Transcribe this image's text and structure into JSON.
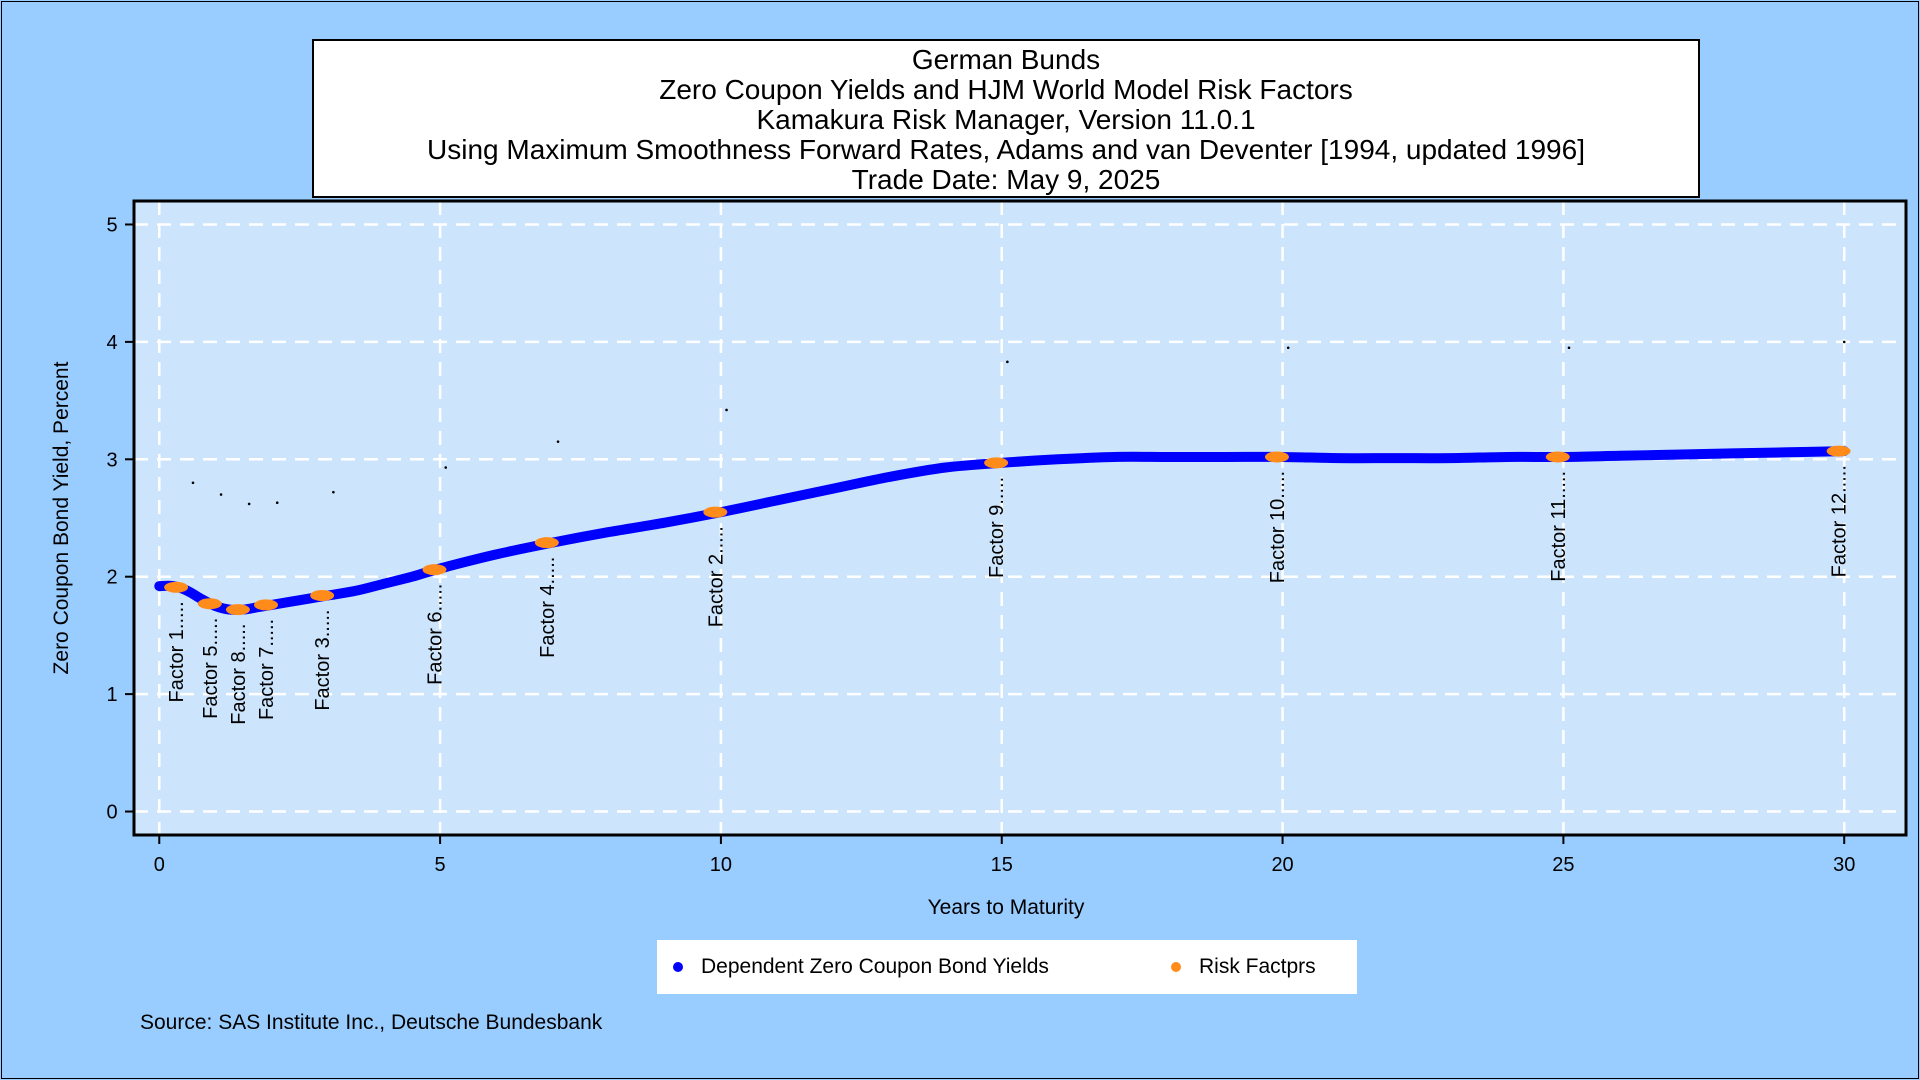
{
  "title_lines": [
    "German Bunds",
    "Zero Coupon Yields and HJM World Model Risk Factors",
    "Kamakura Risk Manager, Version 11.0.1",
    "Using Maximum Smoothness Forward Rates, Adams and van Deventer [1994, updated 1996]",
    "Trade Date: May 9, 2025"
  ],
  "source": "Source: SAS Institute Inc., Deutsche Bundesbank",
  "legend": {
    "yields_label": "Dependent Zero Coupon Bond Yields",
    "factors_label": "Risk Factprs"
  },
  "colors": {
    "background": "#99ccff",
    "plot_area": "#cce5fc",
    "yield_curve": "#0000ff",
    "risk_factor": "#ff8c1a",
    "grid": "#ffffff"
  },
  "chart_data": {
    "type": "line",
    "xlabel": "Years to Maturity",
    "ylabel": "Zero Coupon Bond Yield, Percent",
    "xlim": [
      -0.45,
      31.1
    ],
    "ylim": [
      -0.2,
      5.2
    ],
    "xticks": [
      0,
      5,
      10,
      15,
      20,
      25,
      30
    ],
    "yticks": [
      0,
      1,
      2,
      3,
      4,
      5
    ],
    "grid": true,
    "legend_position": "bottom",
    "series": [
      {
        "name": "Dependent Zero Coupon Bond Yields",
        "x": [
          0,
          0.25,
          0.5,
          0.75,
          1,
          1.25,
          1.5,
          1.75,
          2,
          2.5,
          3,
          3.5,
          4,
          4.5,
          5,
          6,
          7,
          8,
          9,
          10,
          11,
          12,
          13,
          14,
          15,
          16,
          17,
          18,
          19,
          20,
          21,
          22,
          23,
          24,
          25,
          26,
          27,
          28,
          29,
          30
        ],
        "y": [
          1.92,
          1.92,
          1.88,
          1.81,
          1.75,
          1.72,
          1.72,
          1.74,
          1.76,
          1.8,
          1.84,
          1.88,
          1.94,
          2.0,
          2.07,
          2.19,
          2.29,
          2.38,
          2.46,
          2.55,
          2.65,
          2.75,
          2.85,
          2.93,
          2.97,
          3.0,
          3.02,
          3.02,
          3.02,
          3.02,
          3.01,
          3.01,
          3.01,
          3.02,
          3.02,
          3.03,
          3.04,
          3.05,
          3.06,
          3.07
        ]
      }
    ],
    "risk_factors": [
      {
        "label": "Factor 1.....",
        "x": 0.3,
        "y": 1.91
      },
      {
        "label": "Factor 5.....",
        "x": 0.9,
        "y": 1.77
      },
      {
        "label": "Factor 8.....",
        "x": 1.4,
        "y": 1.72
      },
      {
        "label": "Factor 7.....",
        "x": 1.9,
        "y": 1.76
      },
      {
        "label": "Factor 3.....",
        "x": 2.9,
        "y": 1.84
      },
      {
        "label": "Factor 6.....",
        "x": 4.9,
        "y": 2.06
      },
      {
        "label": "Factor 4.....",
        "x": 6.9,
        "y": 2.29
      },
      {
        "label": "Factor 2.....",
        "x": 9.9,
        "y": 2.55
      },
      {
        "label": "Factor 9.....",
        "x": 14.9,
        "y": 2.97
      },
      {
        "label": "Factor 10.....",
        "x": 19.9,
        "y": 3.02
      },
      {
        "label": "Factor 11.....",
        "x": 24.9,
        "y": 3.02
      },
      {
        "label": "Factor 12.....",
        "x": 29.9,
        "y": 3.07
      }
    ],
    "marker_points": [
      {
        "x": 0.6,
        "y": 2.8
      },
      {
        "x": 1.1,
        "y": 2.7
      },
      {
        "x": 1.6,
        "y": 2.62
      },
      {
        "x": 2.1,
        "y": 2.63
      },
      {
        "x": 3.1,
        "y": 2.72
      },
      {
        "x": 5.1,
        "y": 2.93
      },
      {
        "x": 7.1,
        "y": 3.15
      },
      {
        "x": 10.1,
        "y": 3.42
      },
      {
        "x": 15.1,
        "y": 3.83
      },
      {
        "x": 20.1,
        "y": 3.95
      },
      {
        "x": 25.1,
        "y": 3.95
      },
      {
        "x": 30.0,
        "y": 4.0
      }
    ]
  }
}
